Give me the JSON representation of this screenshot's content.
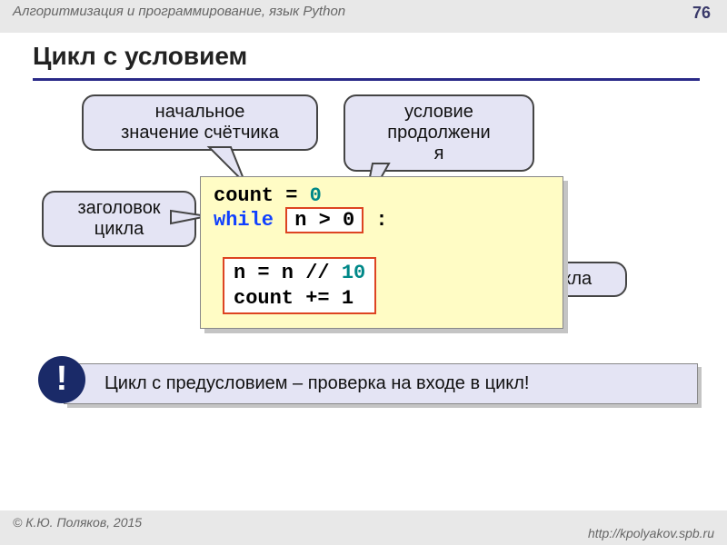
{
  "header": {
    "course": "Алгоритмизация и программирование, язык Python",
    "page": "76"
  },
  "title": "Цикл с условием",
  "bubbles": {
    "b1": "начальное\nзначение счётчика",
    "b2": "условие\nпродолжени\nя",
    "b3": "заголовок\nцикла",
    "b4": "тело цикла"
  },
  "code": {
    "l1a": "count = ",
    "l1b": "0",
    "l2a": "while ",
    "cond": "n > 0",
    "l2b": " :",
    "body1": "n = n // ",
    "body1b": "10",
    "body2": "count += 1"
  },
  "note": "Цикл с предусловием – проверка на входе в цикл!",
  "bang": "!",
  "footer": {
    "author": "© К.Ю. Поляков, 2015",
    "url": "http://kpolyakov.spb.ru"
  },
  "colors": {
    "bubble_bg": "#e4e4f4",
    "code_bg": "#fffcc5",
    "accent": "#d42"
  }
}
